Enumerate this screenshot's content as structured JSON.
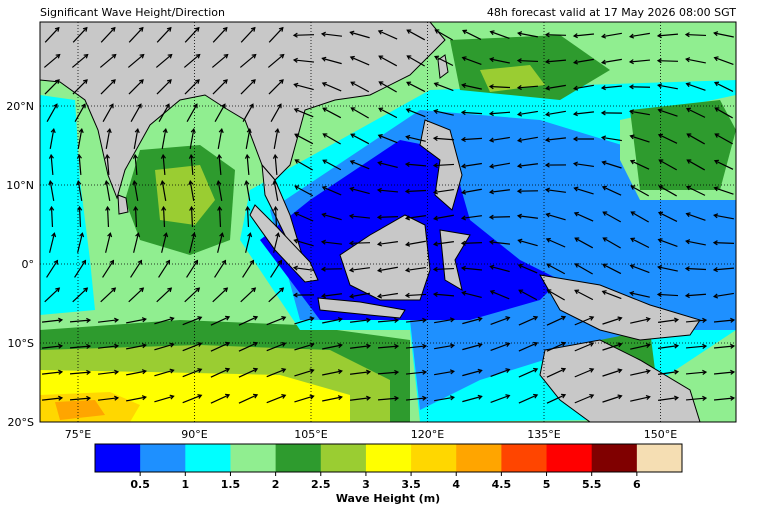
{
  "header": {
    "title": "Significant Wave Height/Direction",
    "valid": "48h forecast valid at 17 May 2026 08:00 SGT"
  },
  "map": {
    "lat_labels": [
      "20°N",
      "10°N",
      "0°",
      "10°S",
      "20°S"
    ],
    "lon_labels": [
      "75°E",
      "90°E",
      "105°E",
      "120°E",
      "135°E",
      "150°E"
    ]
  },
  "colorbar": {
    "label": "Wave Height (m)",
    "colors": [
      "#0000ff",
      "#1e90ff",
      "#00ffff",
      "#90ee90",
      "#2e9b2e",
      "#9acd32",
      "#ffff00",
      "#ffd700",
      "#ffa500",
      "#ff4500",
      "#ff0000",
      "#800000",
      "#f5deb3"
    ],
    "ticks": [
      0.5,
      1,
      1.5,
      2,
      2.5,
      3,
      3.5,
      4,
      4.5,
      5,
      5.5,
      6
    ]
  }
}
